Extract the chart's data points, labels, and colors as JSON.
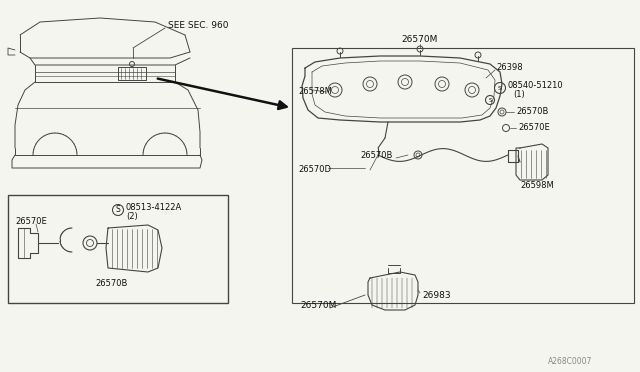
{
  "bg_color": "#f5f5f0",
  "line_color": "#444444",
  "dark_line": "#111111",
  "fig_width": 6.4,
  "fig_height": 3.72,
  "dpi": 100,
  "labels": {
    "see_sec_960": "SEE SEC. 960",
    "26570M_top": "26570M",
    "26398": "26398",
    "08540_51210": "08540-51210",
    "08540_51210_sub": "(1)",
    "26570B_r1": "26570B",
    "26570E_r": "26570E",
    "26578M": "26578M",
    "26570B_m": "26570B",
    "26570D": "26570D",
    "26598M": "26598M",
    "26570E_l": "26570E",
    "08513_4122A": "08513-4122A",
    "08513_sub": "(2)",
    "26570B_l": "26570B",
    "26570M_bot": "26570M",
    "26983": "26983",
    "watermark": "A268C0007"
  }
}
